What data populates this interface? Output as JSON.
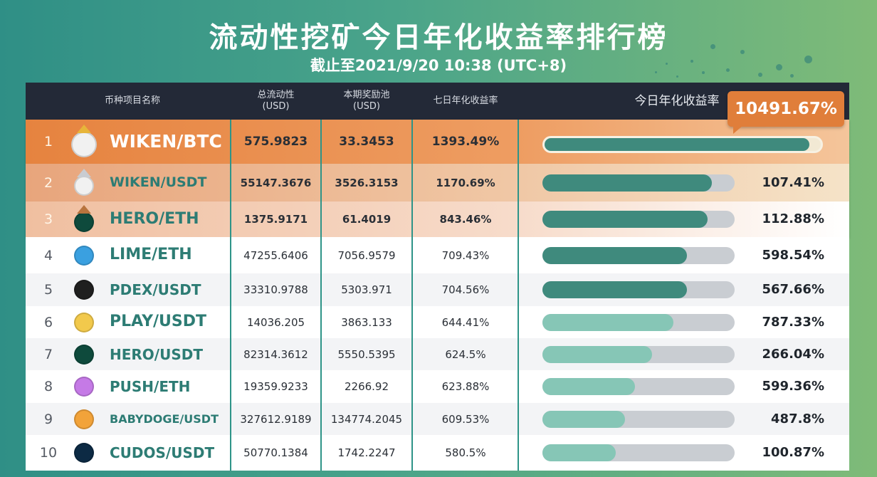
{
  "title": "流动性挖矿今日年化收益率排行榜",
  "subtitle": "截止至2021/9/20 10:38 (UTC+8)",
  "headers": {
    "name": "币种项目名称",
    "liquidity_line1": "总流动性",
    "liquidity_line2": "(USD)",
    "pool_line1": "本期奖励池",
    "pool_line2": "(USD)",
    "seven_day": "七日年化收益率",
    "today": "今日年化收益率"
  },
  "colors": {
    "header_bg": "#232937",
    "row1_bg": "#e8894a",
    "row2_bg": "#eeb58e",
    "row3_bg": "#f4d0b8",
    "bar_dark": "#3f8a7d",
    "bar_light": "#86c6b6",
    "accent_orange": "#e07e3a"
  },
  "rows": [
    {
      "rank": "1",
      "pair": "WIKEN/BTC",
      "icon": "wiken-crown-gold-icon",
      "liquidity": "575.9823",
      "pool": "33.3453",
      "seven_day": "1393.49%",
      "today": "10491.67%",
      "today_value": 10491.67,
      "bar_fraction": 0.96
    },
    {
      "rank": "2",
      "pair": "WIKEN/USDT",
      "icon": "wiken-crown-silver-icon",
      "liquidity": "55147.3676",
      "pool": "3526.3153",
      "seven_day": "1170.69%",
      "today": "107.41%",
      "today_value": 107.41,
      "bar_fraction": 0.88
    },
    {
      "rank": "3",
      "pair": "HERO/ETH",
      "icon": "hero-crown-bronze-icon",
      "liquidity": "1375.9171",
      "pool": "61.4019",
      "seven_day": "843.46%",
      "today": "112.88%",
      "today_value": 112.88,
      "bar_fraction": 0.86
    },
    {
      "rank": "4",
      "pair": "LIME/ETH",
      "icon": "lime-icon",
      "liquidity": "47255.6406",
      "pool": "7056.9579",
      "seven_day": "709.43%",
      "today": "598.54%",
      "today_value": 598.54,
      "bar_fraction": 0.75
    },
    {
      "rank": "5",
      "pair": "PDEX/USDT",
      "icon": "pdex-icon",
      "liquidity": "33310.9788",
      "pool": "5303.971",
      "seven_day": "704.56%",
      "today": "567.66%",
      "today_value": 567.66,
      "bar_fraction": 0.75
    },
    {
      "rank": "6",
      "pair": "PLAY/USDT",
      "icon": "play-icon",
      "liquidity": "14036.205",
      "pool": "3863.133",
      "seven_day": "644.41%",
      "today": "787.33%",
      "today_value": 787.33,
      "bar_fraction": 0.68
    },
    {
      "rank": "7",
      "pair": "HERO/USDT",
      "icon": "hero-icon",
      "liquidity": "82314.3612",
      "pool": "5550.5395",
      "seven_day": "624.5%",
      "today": "266.04%",
      "today_value": 266.04,
      "bar_fraction": 0.57
    },
    {
      "rank": "8",
      "pair": "PUSH/ETH",
      "icon": "push-bell-icon",
      "liquidity": "19359.9233",
      "pool": "2266.92",
      "seven_day": "623.88%",
      "today": "599.36%",
      "today_value": 599.36,
      "bar_fraction": 0.48
    },
    {
      "rank": "9",
      "pair": "BABYDOGE/USDT",
      "icon": "babydoge-icon",
      "liquidity": "327612.9189",
      "pool": "134774.2045",
      "seven_day": "609.53%",
      "today": "487.8%",
      "today_value": 487.8,
      "bar_fraction": 0.43
    },
    {
      "rank": "10",
      "pair": "CUDOS/USDT",
      "icon": "cudos-icon",
      "liquidity": "50770.1384",
      "pool": "1742.2247",
      "seven_day": "580.5%",
      "today": "100.87%",
      "today_value": 100.87,
      "bar_fraction": 0.38
    }
  ]
}
